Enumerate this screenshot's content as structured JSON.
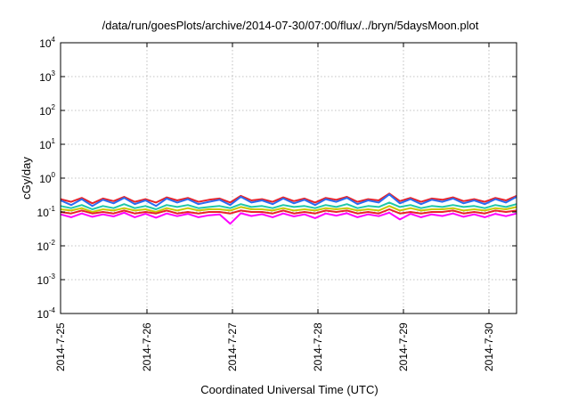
{
  "chart_data": {
    "type": "line",
    "title": "/data/run/goesPlots/archive/2014-07-30/07:00/flux/../bryn/5daysMoon.plot",
    "xlabel": "Coordinated Universal Time (UTC)",
    "ylabel": "cGy/day",
    "yscale": "log",
    "ylim": [
      0.0001,
      10000
    ],
    "y_ticks": [
      {
        "base": "10",
        "exp": "-4",
        "value": 0.0001
      },
      {
        "base": "10",
        "exp": "-3",
        "value": 0.001
      },
      {
        "base": "10",
        "exp": "-2",
        "value": 0.01
      },
      {
        "base": "10",
        "exp": "-1",
        "value": 0.1
      },
      {
        "base": "10",
        "exp": "0",
        "value": 1
      },
      {
        "base": "10",
        "exp": "1",
        "value": 10
      },
      {
        "base": "10",
        "exp": "2",
        "value": 100
      },
      {
        "base": "10",
        "exp": "3",
        "value": 1000
      },
      {
        "base": "10",
        "exp": "4",
        "value": 10000
      }
    ],
    "x_ticks": [
      "2014-7-25",
      "2014-7-26",
      "2014-7-27",
      "2014-7-28",
      "2014-7-29",
      "2014-7-30"
    ],
    "xlim": [
      "2014-07-25 00:00",
      "2014-07-30 07:00"
    ],
    "grid": true,
    "series": [
      {
        "color": "#e8232a",
        "level": 0.22,
        "values": [
          0.24,
          0.2,
          0.26,
          0.18,
          0.25,
          0.21,
          0.28,
          0.2,
          0.24,
          0.19,
          0.27,
          0.22,
          0.26,
          0.2,
          0.23,
          0.25,
          0.19,
          0.3,
          0.22,
          0.24,
          0.2,
          0.27,
          0.21,
          0.25,
          0.19,
          0.26,
          0.23,
          0.28,
          0.2,
          0.24,
          0.22,
          0.35,
          0.21,
          0.26,
          0.2,
          0.25,
          0.23,
          0.27,
          0.21,
          0.24,
          0.2,
          0.26,
          0.22,
          0.3
        ]
      },
      {
        "color": "#2a6cf2",
        "level": 0.2,
        "values": [
          0.22,
          0.16,
          0.24,
          0.15,
          0.23,
          0.18,
          0.26,
          0.17,
          0.22,
          0.15,
          0.25,
          0.19,
          0.24,
          0.17,
          0.2,
          0.23,
          0.16,
          0.28,
          0.19,
          0.22,
          0.17,
          0.25,
          0.18,
          0.23,
          0.16,
          0.24,
          0.2,
          0.26,
          0.17,
          0.22,
          0.19,
          0.33,
          0.18,
          0.24,
          0.17,
          0.23,
          0.2,
          0.25,
          0.18,
          0.22,
          0.17,
          0.24,
          0.19,
          0.28
        ]
      },
      {
        "color": "#1fc7a8",
        "level": 0.14,
        "values": [
          0.15,
          0.13,
          0.16,
          0.12,
          0.15,
          0.13,
          0.17,
          0.13,
          0.15,
          0.12,
          0.16,
          0.14,
          0.16,
          0.13,
          0.14,
          0.15,
          0.13,
          0.17,
          0.14,
          0.15,
          0.13,
          0.16,
          0.14,
          0.15,
          0.13,
          0.16,
          0.14,
          0.17,
          0.13,
          0.15,
          0.14,
          0.19,
          0.14,
          0.16,
          0.13,
          0.15,
          0.14,
          0.16,
          0.14,
          0.15,
          0.13,
          0.16,
          0.14,
          0.17
        ]
      },
      {
        "color": "#c8c800",
        "level": 0.12,
        "values": [
          0.12,
          0.11,
          0.13,
          0.1,
          0.12,
          0.11,
          0.13,
          0.11,
          0.12,
          0.1,
          0.13,
          0.11,
          0.13,
          0.11,
          0.12,
          0.12,
          0.11,
          0.14,
          0.12,
          0.12,
          0.11,
          0.13,
          0.11,
          0.12,
          0.11,
          0.13,
          0.12,
          0.13,
          0.11,
          0.12,
          0.11,
          0.15,
          0.11,
          0.13,
          0.11,
          0.12,
          0.12,
          0.13,
          0.11,
          0.12,
          0.11,
          0.13,
          0.12,
          0.14
        ]
      },
      {
        "color": "#e8232a",
        "level": 0.1,
        "values": [
          0.1,
          0.09,
          0.11,
          0.09,
          0.1,
          0.09,
          0.11,
          0.09,
          0.1,
          0.09,
          0.11,
          0.09,
          0.1,
          0.09,
          0.1,
          0.1,
          0.09,
          0.11,
          0.1,
          0.1,
          0.09,
          0.11,
          0.09,
          0.1,
          0.09,
          0.11,
          0.1,
          0.11,
          0.09,
          0.1,
          0.09,
          0.12,
          0.09,
          0.1,
          0.09,
          0.1,
          0.1,
          0.11,
          0.09,
          0.1,
          0.09,
          0.11,
          0.1,
          0.11
        ]
      },
      {
        "color": "#ff00ff",
        "level": 0.085,
        "values": [
          0.085,
          0.07,
          0.09,
          0.072,
          0.085,
          0.074,
          0.095,
          0.07,
          0.088,
          0.068,
          0.09,
          0.075,
          0.088,
          0.07,
          0.08,
          0.085,
          0.045,
          0.092,
          0.076,
          0.086,
          0.07,
          0.09,
          0.074,
          0.085,
          0.066,
          0.09,
          0.078,
          0.092,
          0.07,
          0.085,
          0.075,
          0.095,
          0.06,
          0.088,
          0.07,
          0.085,
          0.076,
          0.09,
          0.072,
          0.085,
          0.07,
          0.088,
          0.075,
          0.09
        ]
      }
    ]
  }
}
